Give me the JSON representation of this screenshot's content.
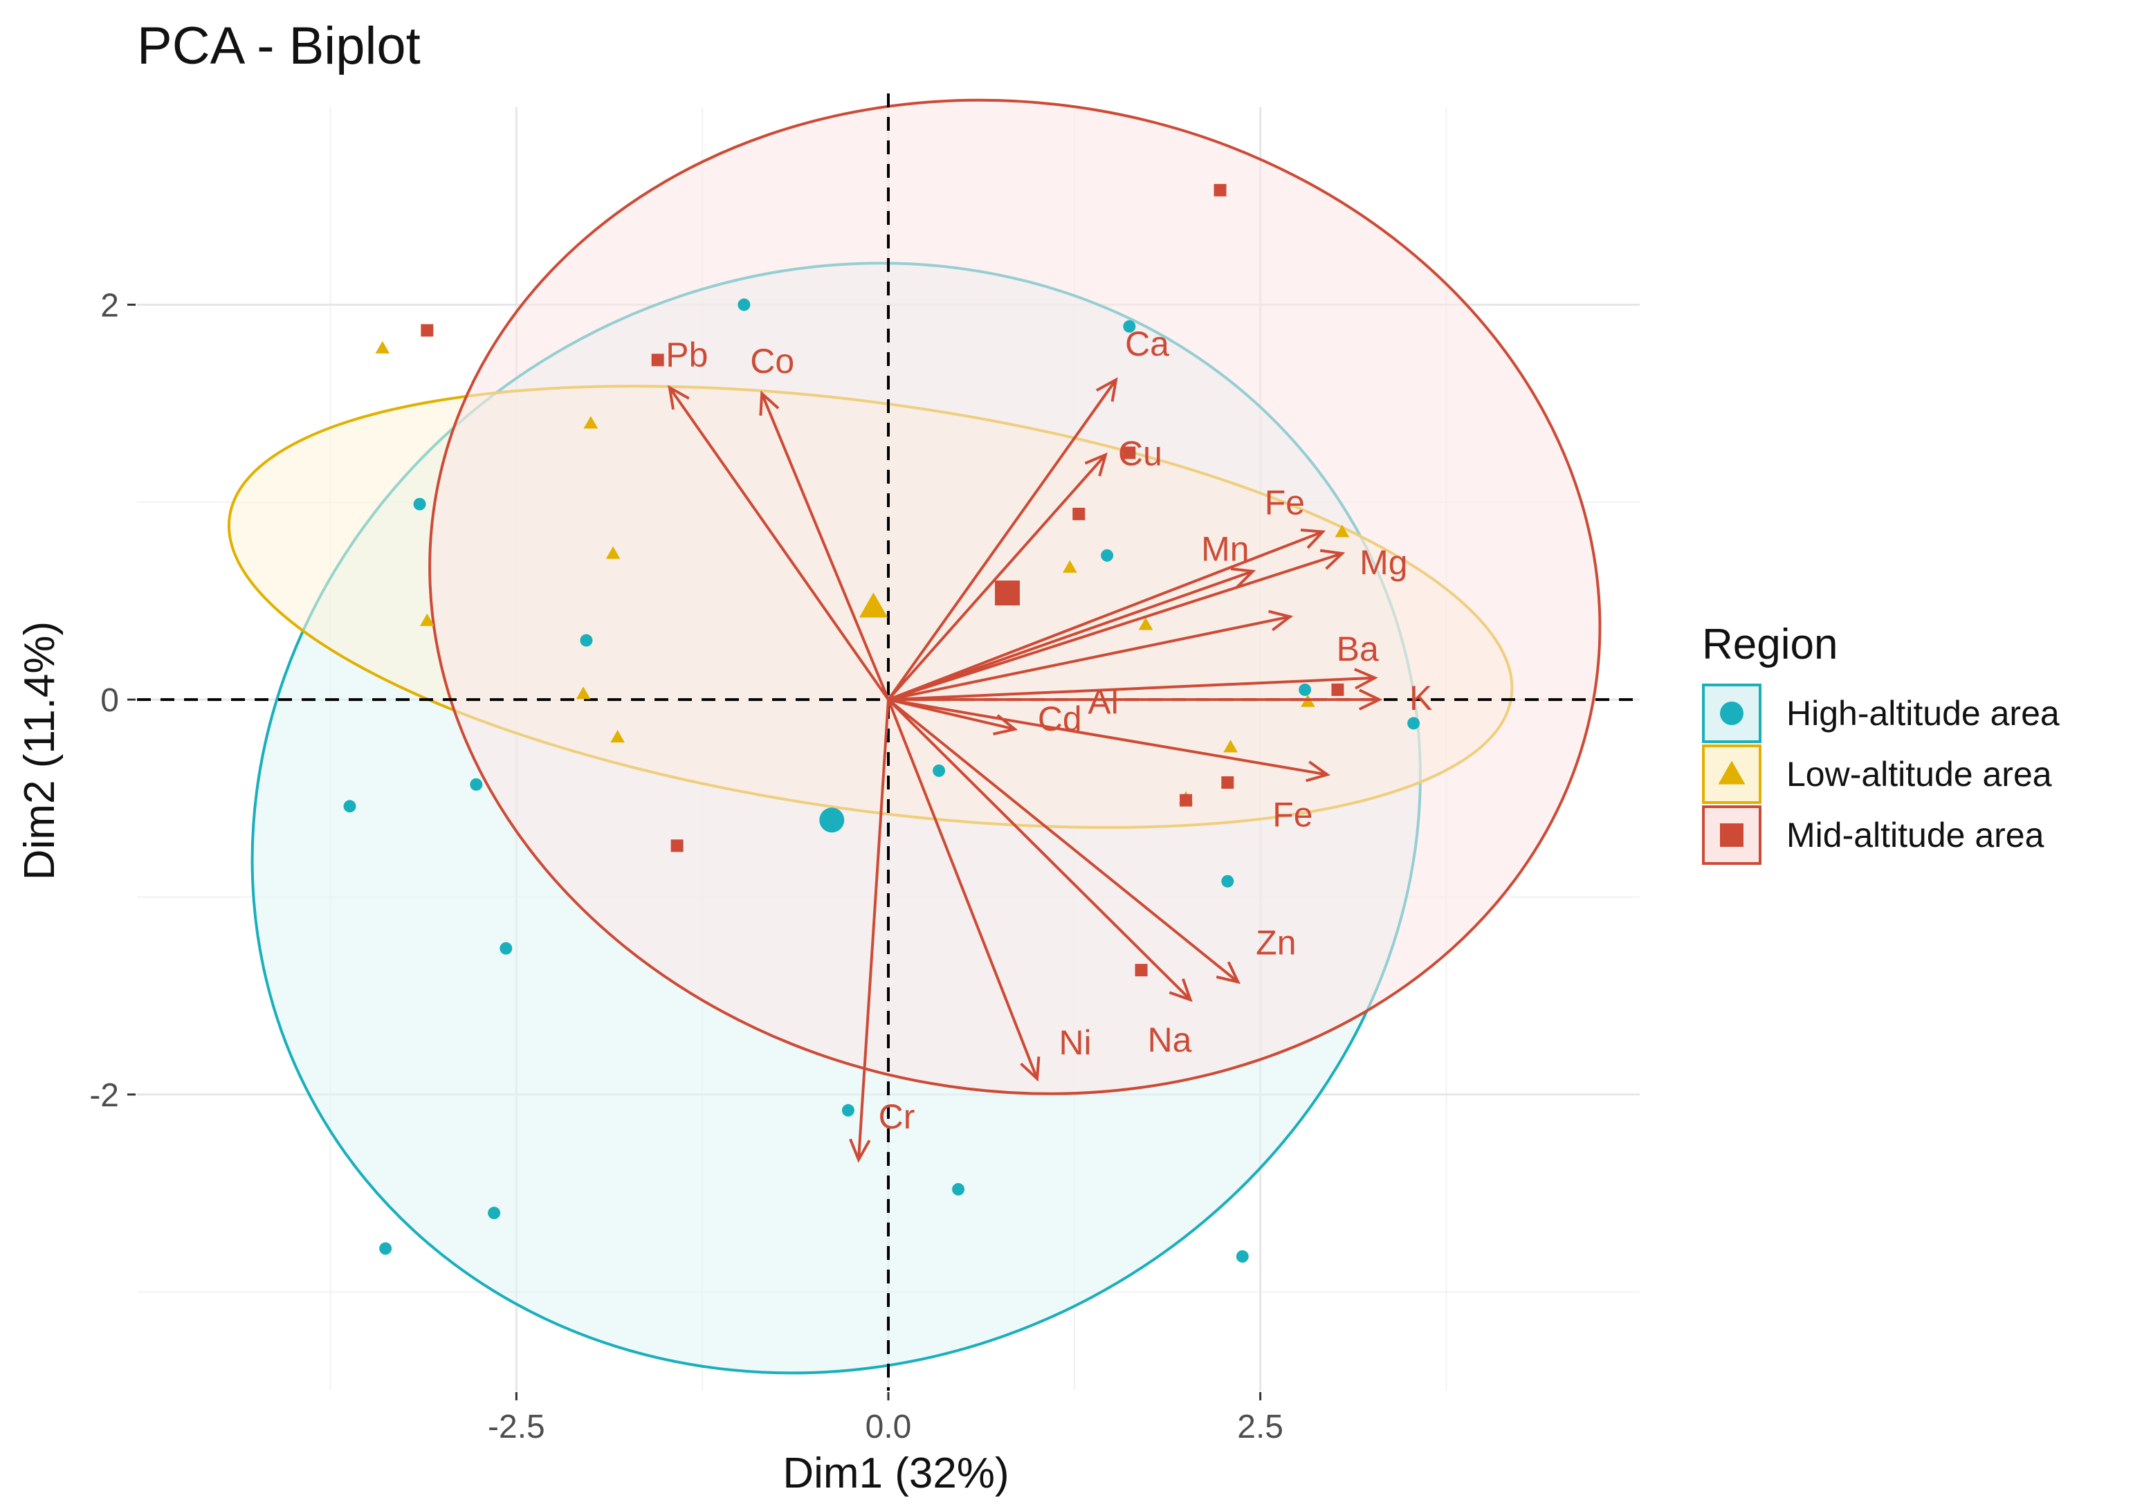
{
  "chart_data": {
    "type": "scatter",
    "subtype": "pca-biplot",
    "title": "PCA - Biplot",
    "xlabel": "Dim1 (32%)",
    "ylabel": "Dim2 (11.4%)",
    "xlim": [
      -5.05,
      5.05
    ],
    "ylim": [
      -3.5,
      3.0
    ],
    "xticks": [
      -2.5,
      0.0,
      2.5
    ],
    "xtick_labels": [
      "-2.5",
      "0.0",
      "2.5"
    ],
    "yticks": [
      -2,
      0,
      2
    ],
    "ytick_labels": [
      "-2",
      "0",
      "2"
    ],
    "grid": true,
    "reference_lines": [
      {
        "axis": "x",
        "value": 0,
        "style": "dashed"
      },
      {
        "axis": "y",
        "value": 0,
        "style": "dashed"
      }
    ],
    "legend": {
      "title": "Region",
      "position": "right",
      "entries": [
        {
          "label": "High-altitude area",
          "shape": "circle",
          "color": "#1aafbc"
        },
        {
          "label": "Low-altitude area",
          "shape": "triangle",
          "color": "#e1b000"
        },
        {
          "label": "Mid-altitude area",
          "shape": "square",
          "color": "#cd4b36"
        }
      ]
    },
    "series": [
      {
        "name": "High-altitude area",
        "shape": "circle",
        "color": "#1aafbc",
        "fill": "#e0f4f6",
        "points": [
          [
            -0.97,
            2.0
          ],
          [
            1.62,
            1.89
          ],
          [
            -3.15,
            0.99
          ],
          [
            1.47,
            0.73
          ],
          [
            -2.03,
            0.3
          ],
          [
            2.8,
            0.05
          ],
          [
            3.53,
            -0.12
          ],
          [
            -3.62,
            -0.54
          ],
          [
            -2.77,
            -0.43
          ],
          [
            0.34,
            -0.36
          ],
          [
            2.28,
            -0.92
          ],
          [
            -2.57,
            -1.26
          ],
          [
            -0.27,
            -2.08
          ],
          [
            0.47,
            -2.48
          ],
          [
            -2.65,
            -2.6
          ],
          [
            -3.38,
            -2.78
          ],
          [
            2.38,
            -2.82
          ]
        ],
        "centroid": [
          -0.38,
          -0.61
        ],
        "ellipse": {
          "cx": -0.35,
          "cy": -0.6,
          "rx": 4.0,
          "ry": 2.75,
          "angle": 28
        }
      },
      {
        "name": "Low-altitude area",
        "shape": "triangle",
        "color": "#e1b000",
        "fill": "#fdf4d8",
        "points": [
          [
            -3.4,
            1.78
          ],
          [
            -2.0,
            1.4
          ],
          [
            -1.85,
            0.74
          ],
          [
            -3.1,
            0.4
          ],
          [
            -2.05,
            0.03
          ],
          [
            -1.82,
            -0.19
          ],
          [
            1.22,
            0.67
          ],
          [
            1.73,
            0.38
          ],
          [
            3.05,
            0.85
          ],
          [
            2.82,
            -0.01
          ],
          [
            2.3,
            -0.24
          ],
          [
            2.0,
            -0.5
          ]
        ],
        "centroid": [
          -0.1,
          0.47
        ],
        "ellipse": {
          "cx": -0.12,
          "cy": 0.47,
          "rx": 4.35,
          "ry": 1.03,
          "angle": -8
        }
      },
      {
        "name": "Mid-altitude area",
        "shape": "square",
        "color": "#cd4b36",
        "fill": "#fbe8e6",
        "points": [
          [
            -3.1,
            1.87
          ],
          [
            -1.55,
            1.72
          ],
          [
            2.23,
            2.58
          ],
          [
            1.62,
            1.25
          ],
          [
            1.28,
            0.94
          ],
          [
            3.02,
            0.05
          ],
          [
            2.28,
            -0.42
          ],
          [
            2.0,
            -0.51
          ],
          [
            1.7,
            -1.37
          ],
          [
            -1.42,
            -0.74
          ]
        ],
        "centroid": [
          0.8,
          0.54
        ],
        "ellipse": {
          "cx": 0.85,
          "cy": 0.52,
          "rx": 3.95,
          "ry": 2.5,
          "angle": -10
        }
      }
    ],
    "loadings": [
      {
        "label": "Pb",
        "x": -1.47,
        "y": 1.58
      },
      {
        "label": "Co",
        "x": -0.85,
        "y": 1.55
      },
      {
        "label": "Ca",
        "x": 1.53,
        "y": 1.62
      },
      {
        "label": "Cu",
        "x": 1.46,
        "y": 1.24
      },
      {
        "label": "Fe",
        "x": 2.92,
        "y": 0.85
      },
      {
        "label": "Mn",
        "x": 2.45,
        "y": 0.65
      },
      {
        "label": "Mg",
        "x": 3.05,
        "y": 0.74
      },
      {
        "label": "Al",
        "x": 2.7,
        "y": 0.42
      },
      {
        "label": "Ba",
        "x": 3.27,
        "y": 0.11
      },
      {
        "label": "K",
        "x": 3.3,
        "y": 0.0
      },
      {
        "label": "Cd",
        "x": 0.85,
        "y": -0.15
      },
      {
        "label": "Fe",
        "x": 2.95,
        "y": -0.38
      },
      {
        "label": "Zn",
        "x": 2.35,
        "y": -1.43
      },
      {
        "label": "Na",
        "x": 2.03,
        "y": -1.52
      },
      {
        "label": "Ni",
        "x": 1.0,
        "y": -1.92
      },
      {
        "label": "Cr",
        "x": -0.2,
        "y": -2.33
      }
    ]
  }
}
